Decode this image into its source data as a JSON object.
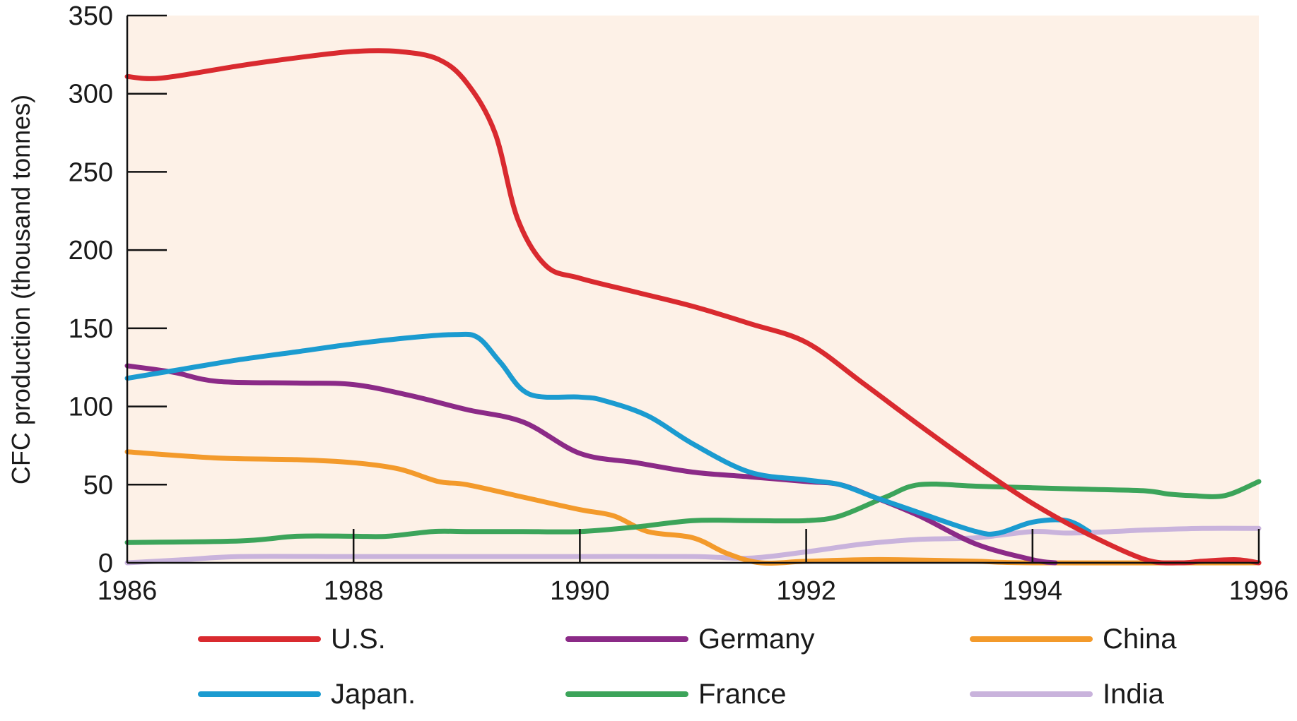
{
  "chart_data": {
    "type": "line",
    "title": "",
    "xlabel": "",
    "ylabel": "CFC production (thousand tonnes)",
    "xlim": [
      1986,
      1996
    ],
    "ylim": [
      0,
      350
    ],
    "x_ticks": [
      "1986",
      "1988",
      "1990",
      "1992",
      "1994",
      "1996"
    ],
    "y_ticks": [
      "0",
      "50",
      "100",
      "150",
      "200",
      "250",
      "300",
      "350"
    ],
    "grid": false,
    "legend_position": "bottom",
    "background": "#fdf1e7",
    "series": [
      {
        "name": "U.S.",
        "color": "#d92a2f",
        "x": [
          1986,
          1986.3,
          1987,
          1987.5,
          1988,
          1988.4,
          1988.75,
          1989,
          1989.25,
          1989.45,
          1989.7,
          1990,
          1990.5,
          1991,
          1991.5,
          1992,
          1992.5,
          1993,
          1993.5,
          1994,
          1994.5,
          1995,
          1995.3,
          1995.5,
          1995.8,
          1996
        ],
        "y": [
          311,
          310,
          318,
          323,
          327,
          327,
          322,
          307,
          275,
          220,
          190,
          182,
          173,
          164,
          153,
          141,
          115,
          88,
          62,
          38,
          18,
          2,
          0,
          1,
          2,
          0
        ]
      },
      {
        "name": "Germany",
        "color": "#8b2a87",
        "x": [
          1986,
          1986.4,
          1986.8,
          1987.5,
          1988,
          1988.5,
          1989,
          1989.5,
          1990,
          1990.5,
          1991,
          1991.5,
          1992,
          1992.3,
          1992.6,
          1993,
          1993.5,
          1994,
          1994.2
        ],
        "y": [
          126,
          122,
          116,
          115,
          114,
          107,
          98,
          90,
          70,
          64,
          58,
          55,
          52,
          50,
          42,
          30,
          12,
          2,
          0
        ]
      },
      {
        "name": "China",
        "color": "#f39a2b",
        "x": [
          1986,
          1986.8,
          1987.5,
          1988,
          1988.4,
          1988.75,
          1989,
          1989.5,
          1990,
          1990.3,
          1990.6,
          1991,
          1991.3,
          1991.6,
          1992,
          1992.5,
          1992.8,
          1993.5,
          1994,
          1996
        ],
        "y": [
          71,
          67,
          66,
          64,
          60,
          52,
          50,
          42,
          34,
          30,
          20,
          16,
          6,
          0,
          1,
          2,
          2,
          1,
          0,
          0
        ]
      },
      {
        "name": "Japan.",
        "color": "#1b9bd0",
        "x": [
          1986,
          1986.5,
          1987,
          1987.5,
          1988,
          1988.5,
          1988.9,
          1989.1,
          1989.3,
          1989.55,
          1990,
          1990.2,
          1990.6,
          1991,
          1991.5,
          1992,
          1992.3,
          1992.6,
          1993,
          1993.5,
          1993.7,
          1994,
          1994.3,
          1994.5
        ],
        "y": [
          118,
          124,
          130,
          135,
          140,
          144,
          146,
          144,
          128,
          108,
          106,
          104,
          94,
          76,
          58,
          53,
          50,
          42,
          32,
          20,
          19,
          26,
          27,
          20
        ]
      },
      {
        "name": "France",
        "color": "#3ca45a",
        "x": [
          1986,
          1987,
          1987.5,
          1988,
          1988.3,
          1988.7,
          1989,
          1989.5,
          1990,
          1990.5,
          1991,
          1991.5,
          1992,
          1992.3,
          1992.7,
          1993,
          1993.5,
          1994,
          1994.5,
          1995,
          1995.2,
          1995.4,
          1995.7,
          1996
        ],
        "y": [
          13,
          14,
          17,
          17,
          17,
          20,
          20,
          20,
          20,
          23,
          27,
          27,
          27,
          30,
          42,
          50,
          49,
          48,
          47,
          46,
          44,
          43,
          43,
          52
        ]
      },
      {
        "name": "India",
        "color": "#c9b3dc",
        "x": [
          1986,
          1986.5,
          1987,
          1988,
          1989,
          1990,
          1991,
          1991.5,
          1992,
          1992.5,
          1993,
          1993.5,
          1994,
          1994.3,
          1994.7,
          1995,
          1995.5,
          1996
        ],
        "y": [
          0,
          2,
          4,
          4,
          4,
          4,
          4,
          3,
          7,
          12,
          15,
          16,
          20,
          19,
          20,
          21,
          22,
          22
        ]
      }
    ]
  }
}
